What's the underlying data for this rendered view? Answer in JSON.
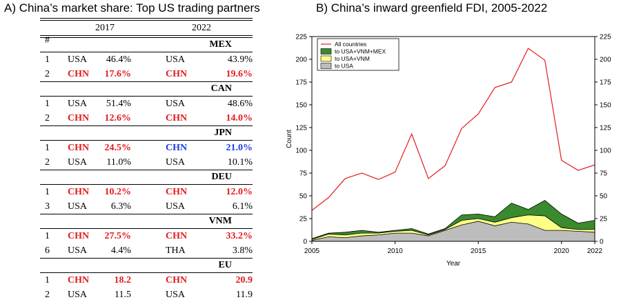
{
  "panel_a": {
    "title": "A) China’s market share: Top US trading partners",
    "header": {
      "rank": "#",
      "year1": "2017",
      "year2": "2022"
    },
    "groups": [
      {
        "name": "MEX",
        "rows": [
          {
            "rank": "1",
            "c1": "USA",
            "v1": "46.4%",
            "c2": "USA",
            "v2": "43.9%",
            "style1": "normal",
            "style2": "normal"
          },
          {
            "rank": "2",
            "c1": "CHN",
            "v1": "17.6%",
            "c2": "CHN",
            "v2": "19.6%",
            "style1": "red",
            "style2": "red"
          }
        ]
      },
      {
        "name": "CAN",
        "rows": [
          {
            "rank": "1",
            "c1": "USA",
            "v1": "51.4%",
            "c2": "USA",
            "v2": "48.6%",
            "style1": "normal",
            "style2": "normal"
          },
          {
            "rank": "2",
            "c1": "CHN",
            "v1": "12.6%",
            "c2": "CHN",
            "v2": "14.0%",
            "style1": "red",
            "style2": "red"
          }
        ]
      },
      {
        "name": "JPN",
        "rows": [
          {
            "rank": "1",
            "c1": "CHN",
            "v1": "24.5%",
            "c2": "CHN",
            "v2": "21.0%",
            "style1": "red",
            "style2": "blue"
          },
          {
            "rank": "2",
            "c1": "USA",
            "v1": "11.0%",
            "c2": "USA",
            "v2": "10.1%",
            "style1": "normal",
            "style2": "normal"
          }
        ]
      },
      {
        "name": "DEU",
        "rows": [
          {
            "rank": "1",
            "c1": "CHN",
            "v1": "10.2%",
            "c2": "CHN",
            "v2": "12.0%",
            "style1": "red",
            "style2": "red"
          },
          {
            "rank": "3",
            "c1": "USA",
            "v1": "6.3%",
            "c2": "USA",
            "v2": "6.1%",
            "style1": "normal",
            "style2": "normal"
          }
        ]
      },
      {
        "name": "VNM",
        "rows": [
          {
            "rank": "1",
            "c1": "CHN",
            "v1": "27.5%",
            "c2": "CHN",
            "v2": "33.2%",
            "style1": "red",
            "style2": "red"
          },
          {
            "rank": "6",
            "c1": "USA",
            "v1": "4.4%",
            "c2": "THA",
            "v2": "3.8%",
            "style1": "normal",
            "style2": "normal"
          }
        ]
      },
      {
        "name": "EU",
        "rows": [
          {
            "rank": "1",
            "c1": "CHN",
            "v1": "18.2",
            "c2": "CHN",
            "v2": "20.9",
            "style1": "red",
            "style2": "red"
          },
          {
            "rank": "2",
            "c1": "USA",
            "v1": "11.5",
            "c2": "USA",
            "v2": "11.9",
            "style1": "normal",
            "style2": "normal"
          }
        ]
      }
    ],
    "colors": {
      "red": "#e41a1c",
      "blue": "#1a3fe4"
    }
  },
  "chart_data": {
    "type": "area",
    "title": "B) China’s inward greenfield FDI, 2005-2022",
    "xlabel": "Year",
    "ylabel": "Count",
    "xlim": [
      2005,
      2022
    ],
    "ylim": [
      0,
      225
    ],
    "xticks": [
      2005,
      2010,
      2015,
      2020,
      2022
    ],
    "yticks": [
      0,
      25,
      50,
      75,
      100,
      125,
      150,
      175,
      200,
      225
    ],
    "grid": false,
    "legend_position": "top-left",
    "x": [
      2005,
      2006,
      2007,
      2008,
      2009,
      2010,
      2011,
      2012,
      2013,
      2014,
      2015,
      2016,
      2017,
      2018,
      2019,
      2020,
      2021,
      2022
    ],
    "series": [
      {
        "name": "All countries",
        "kind": "line",
        "color": "#e41a1c",
        "values": [
          34,
          48,
          69,
          75,
          68,
          76,
          118,
          69,
          83,
          124,
          140,
          169,
          175,
          212,
          199,
          89,
          78,
          84
        ]
      },
      {
        "name": "to USA+VNM+MEX",
        "kind": "area",
        "color": "#3a8a2e",
        "values": [
          3,
          9,
          10,
          12,
          10,
          12,
          14,
          8,
          14,
          29,
          30,
          27,
          42,
          35,
          45,
          30,
          20,
          23
        ]
      },
      {
        "name": "to USA+VNM",
        "kind": "area",
        "color": "#ffff88",
        "values": [
          2,
          8,
          7,
          9,
          9,
          11,
          12,
          7,
          13,
          23,
          25,
          21,
          26,
          29,
          28,
          15,
          13,
          13
        ]
      },
      {
        "name": "to USA",
        "kind": "area",
        "color": "#bdbdbd",
        "values": [
          1,
          5,
          4,
          6,
          7,
          9,
          9,
          6,
          12,
          18,
          22,
          17,
          21,
          19,
          12,
          12,
          11,
          10
        ]
      }
    ]
  }
}
